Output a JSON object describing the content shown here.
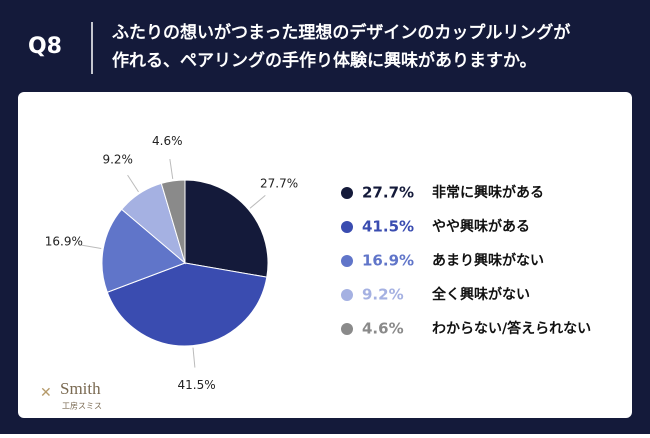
{
  "header": {
    "label": "Q8",
    "title": [
      "ふたりの想いがつまった理想のデザインのカップルリングが",
      "作れる、ペアリングの手作り体験に興味がありますか。"
    ]
  },
  "chart_data": {
    "type": "pie",
    "categories": [
      "非常に興味がある",
      "やや興味がある",
      "あまり興味がない",
      "全く興味がない",
      "わからない/答えられない"
    ],
    "values": [
      27.7,
      41.5,
      16.9,
      9.2,
      4.6
    ],
    "value_labels": [
      "27.7%",
      "41.5%",
      "16.9%",
      "9.2%",
      "4.6%"
    ],
    "colors": [
      "#141a3a",
      "#3a4cb0",
      "#6075c9",
      "#a5b1e2",
      "#8a8a8a"
    ]
  },
  "logo": {
    "name": "Smith",
    "sub": "工房スミス"
  }
}
